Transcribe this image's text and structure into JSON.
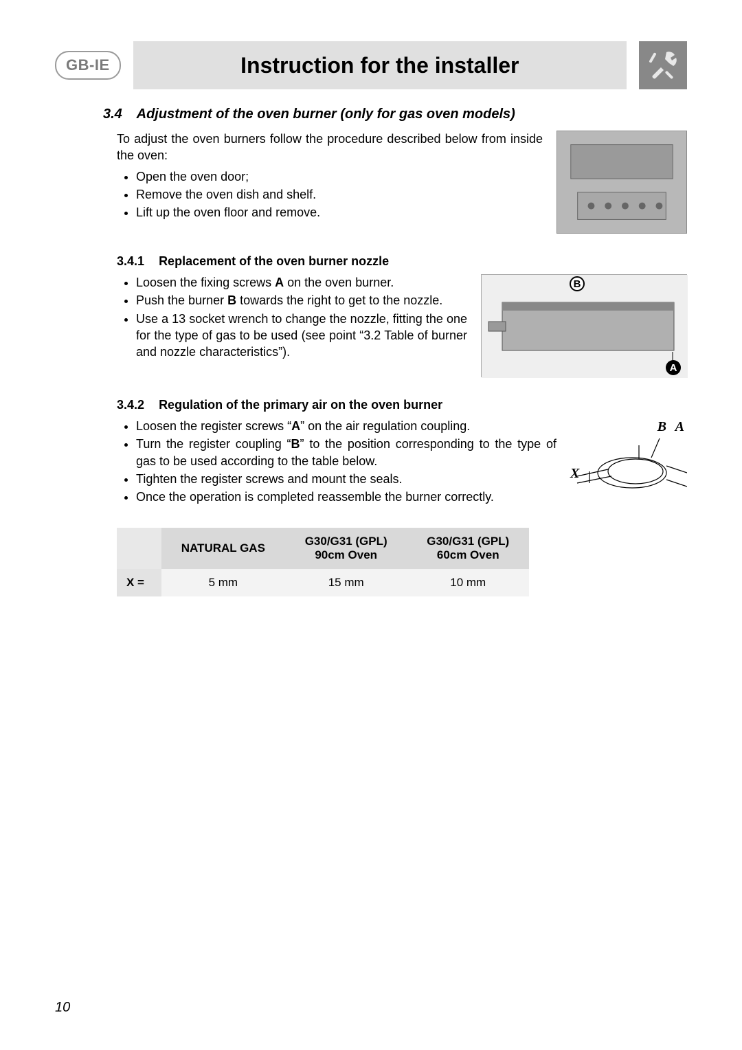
{
  "header": {
    "lang_badge": "GB-IE",
    "title": "Instruction for the installer",
    "icon_name": "tools-icon"
  },
  "section": {
    "number": "3.4",
    "title": "Adjustment of the oven burner (only for gas oven models)",
    "intro_text": "To adjust the oven burners follow the procedure described below from inside the oven:",
    "intro_bullets": [
      "Open the oven door;",
      "Remove the oven dish and shelf.",
      "Lift up the oven floor and remove."
    ]
  },
  "sub1": {
    "number": "3.4.1",
    "title": "Replacement of the oven burner nozzle",
    "bullets": [
      "Loosen the fixing screws <b>A</b> on the oven burner.",
      "Push the burner <b>B</b> towards the right to get to the nozzle.",
      "Use a 13 socket wrench to change the nozzle, fitting the one for the type of gas to be used (see point “3.2 Table of burner and nozzle characteristics”)."
    ],
    "diagram_labels": {
      "A": "A",
      "B": "B"
    }
  },
  "sub2": {
    "number": "3.4.2",
    "title": "Regulation of the primary air on the oven burner",
    "bullets": [
      "Loosen the register screws “<b>A</b>” on the air regulation coupling.",
      "Turn the register coupling “<b>B</b>” to the position corresponding to the type of gas to be used according to the table below.",
      "Tighten the register screws and mount the seals.",
      "Once the operation is completed reassemble the burner correctly."
    ],
    "diagram_labels": {
      "A": "A",
      "B": "B",
      "X": "X"
    }
  },
  "table": {
    "columns": [
      {
        "line1": "NATURAL GAS",
        "line2": ""
      },
      {
        "line1": "G30/G31 (GPL)",
        "line2": "90cm Oven"
      },
      {
        "line1": "G30/G31 (GPL)",
        "line2": "60cm Oven"
      }
    ],
    "row_label": "X =",
    "row_values": [
      "5 mm",
      "15 mm",
      "10 mm"
    ],
    "header_bg": "#d9d9d9",
    "cell_bg": "#f3f3f3"
  },
  "page_number": "10"
}
